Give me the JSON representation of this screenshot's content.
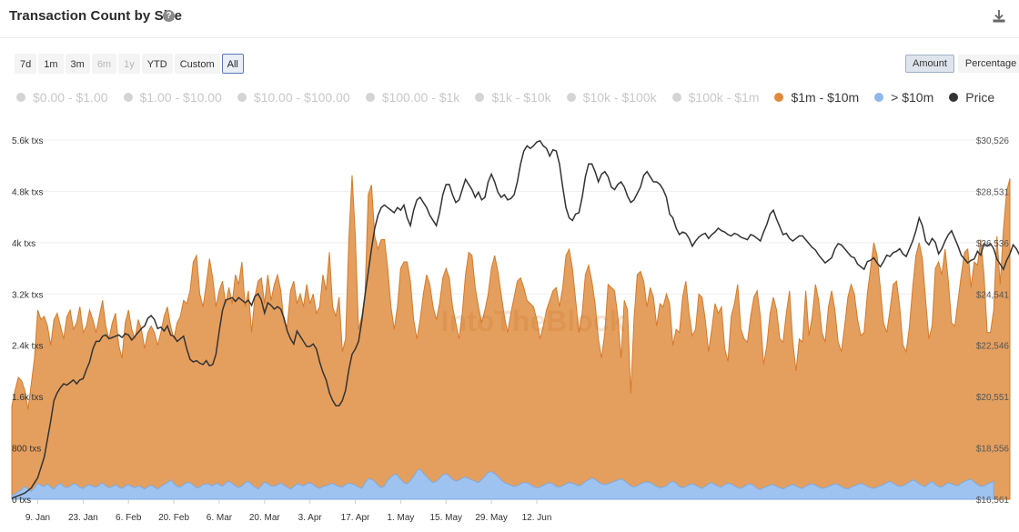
{
  "header": {
    "title": "Transaction Count by Size",
    "help_glyph": "?",
    "icons": {
      "help": "question-circle-icon",
      "download": "download-icon"
    }
  },
  "ranges": [
    {
      "label": "7d",
      "state": "normal"
    },
    {
      "label": "1m",
      "state": "normal"
    },
    {
      "label": "3m",
      "state": "normal"
    },
    {
      "label": "6m",
      "state": "disabled"
    },
    {
      "label": "1y",
      "state": "disabled"
    },
    {
      "label": "YTD",
      "state": "normal"
    },
    {
      "label": "Custom",
      "state": "normal"
    },
    {
      "label": "All",
      "state": "active"
    }
  ],
  "modes": [
    {
      "label": "Amount",
      "active": true
    },
    {
      "label": "Percentage",
      "active": false
    }
  ],
  "legend": [
    {
      "label": "$0.00 - $1.00",
      "enabled": false,
      "color": "#d4d4d4"
    },
    {
      "label": "$1.00 - $10.00",
      "enabled": false,
      "color": "#d4d4d4"
    },
    {
      "label": "$10.00 - $100.00",
      "enabled": false,
      "color": "#d4d4d4"
    },
    {
      "label": "$100.00 - $1k",
      "enabled": false,
      "color": "#d4d4d4"
    },
    {
      "label": "$1k - $10k",
      "enabled": false,
      "color": "#d4d4d4"
    },
    {
      "label": "$10k - $100k",
      "enabled": false,
      "color": "#d4d4d4"
    },
    {
      "label": "$100k - $1m",
      "enabled": false,
      "color": "#d4d4d4"
    },
    {
      "label": "$1m - $10m",
      "enabled": true,
      "color": "#e08a3c"
    },
    {
      "label": "> $10m",
      "enabled": true,
      "color": "#8fb8ea"
    },
    {
      "label": "Price",
      "enabled": true,
      "color": "#333333"
    }
  ],
  "watermark": "IntoTheBlock",
  "chart_data": {
    "type": "area",
    "title": "Transaction Count by Size",
    "x_tick_labels": [
      "9. Jan",
      "23. Jan",
      "6. Feb",
      "20. Feb",
      "6. Mar",
      "20. Mar",
      "3. Apr",
      "17. Apr",
      "1. May",
      "15. May",
      "29. May",
      "12. Jun"
    ],
    "y_left_ticks": [
      "0 txs",
      "800 txs",
      "1.6k txs",
      "2.4k txs",
      "3.2k txs",
      "4k txs",
      "4.8k txs",
      "5.6k txs"
    ],
    "y_left_range": [
      0,
      5600
    ],
    "y_right_ticks": [
      "$16,561",
      "$18,556",
      "$20,551",
      "$22,546",
      "$24,541",
      "$26,536",
      "$28,531",
      "$30,526"
    ],
    "y_right_range": [
      16561,
      30526
    ],
    "x_range_days_note": "daily points from 1 Jan to 19 Jun",
    "grid": "horizontal",
    "legend_position": "top",
    "series": [
      {
        "name": "$1m - $10m",
        "axis": "left",
        "color": "#e08a3c",
        "values": [
          1450,
          1700,
          1900,
          1850,
          1700,
          1400,
          1800,
          2200,
          2950,
          2800,
          2850,
          2700,
          2400,
          2800,
          2900,
          2700,
          2500,
          2850,
          2950,
          2650,
          2750,
          3000,
          2600,
          2700,
          2950,
          2800,
          2600,
          2850,
          3100,
          2700,
          2500,
          2750,
          2900,
          2400,
          2200,
          2750,
          2950,
          2650,
          2500,
          2800,
          2650,
          2350,
          2600,
          2700,
          2600,
          2400,
          2600,
          2850,
          3000,
          2700,
          2500,
          2750,
          2850,
          3100,
          3050,
          3250,
          3700,
          3800,
          3200,
          3000,
          3350,
          3750,
          3450,
          3000,
          3250,
          3400,
          3050,
          3300,
          3050,
          3500,
          3350,
          3700,
          3000,
          3250,
          2600,
          3150,
          3400,
          3450,
          3050,
          3500,
          3100,
          3350,
          3500,
          3250,
          2750,
          2700,
          3250,
          3400,
          3050,
          3200,
          3000,
          3350,
          3050,
          3200,
          2900,
          3000,
          3500,
          3250,
          3850,
          3000,
          2850,
          3150,
          2300,
          2500,
          4050,
          5050,
          4100,
          2650,
          2850,
          3200,
          4750,
          4900,
          4100,
          3900,
          4050,
          4050,
          3600,
          3000,
          2650,
          3000,
          3600,
          3700,
          3700,
          3400,
          2800,
          2500,
          2800,
          3200,
          3500,
          3350,
          3000,
          2800,
          3050,
          3450,
          3600,
          3450,
          3000,
          2750,
          2500,
          2900,
          3500,
          3850,
          3800,
          3300,
          3000,
          2750,
          2950,
          3200,
          3600,
          3800,
          3550,
          3200,
          2850,
          2600,
          2900,
          3150,
          3400,
          3450,
          3300,
          3100,
          3050,
          3000,
          2800,
          2500,
          2700,
          2950,
          3100,
          3250,
          3300,
          3000,
          3300,
          3800,
          3900,
          3600,
          3100,
          2600,
          2900,
          3500,
          3650,
          3400,
          3050,
          2500,
          2200,
          2600,
          3350,
          3300,
          3250,
          2850,
          2200,
          3100,
          2950,
          1650,
          2800,
          3500,
          3550,
          3400,
          3000,
          3300,
          3150,
          2700,
          3050,
          3000,
          3200,
          3050,
          2400,
          2650,
          2600,
          3150,
          3400,
          2900,
          2550,
          2650,
          3200,
          3150,
          2800,
          2300,
          2650,
          3050,
          2900,
          3000,
          2350,
          2150,
          2850,
          3050,
          3350,
          2650,
          2500,
          2450,
          2850,
          3150,
          3250,
          2850,
          2100,
          2400,
          2900,
          3150,
          2950,
          2500,
          2450,
          2900,
          3250,
          2450,
          2000,
          2500,
          2450,
          3250,
          2550,
          2850,
          3350,
          3100,
          2600,
          2450,
          3000,
          3250,
          2950,
          2450,
          2300,
          2700,
          3150,
          3350,
          3200,
          2800,
          2550,
          2600,
          3200,
          3600,
          4000,
          3800,
          3300,
          2750,
          2600,
          2950,
          3350,
          3400,
          3000,
          2400,
          2300,
          2700,
          3300,
          3800,
          4000,
          3750,
          3100,
          2500,
          2700,
          3600,
          3700,
          3500,
          3900,
          3400,
          2750,
          2700,
          3100,
          3500,
          3850,
          3900,
          3300,
          3700,
          3650,
          4050,
          3500,
          2600,
          2600,
          2950,
          4100,
          3350,
          4200,
          4800,
          5000
        ]
      },
      {
        "name": "> $10m",
        "axis": "left",
        "color": "#8fb8ea",
        "values": [
          60,
          80,
          120,
          150,
          200,
          160,
          120,
          180,
          250,
          220,
          200,
          240,
          190,
          160,
          220,
          250,
          200,
          180,
          210,
          240,
          230,
          190,
          170,
          210,
          230,
          200,
          190,
          220,
          260,
          210,
          180,
          200,
          230,
          190,
          170,
          210,
          230,
          200,
          180,
          210,
          190,
          160,
          200,
          220,
          190,
          160,
          200,
          230,
          260,
          300,
          250,
          200,
          190,
          230,
          260,
          260,
          220,
          180,
          190,
          230,
          240,
          230,
          210,
          250,
          230,
          200,
          260,
          280,
          250,
          210,
          180,
          210,
          260,
          280,
          230,
          190,
          160,
          210,
          270,
          240,
          210,
          200,
          230,
          250,
          220,
          190,
          160,
          200,
          240,
          230,
          210,
          240,
          260,
          230,
          190,
          170,
          200,
          210,
          230,
          250,
          220,
          200,
          190,
          230,
          250,
          240,
          220,
          190,
          170,
          260,
          320,
          310,
          280,
          220,
          180,
          210,
          300,
          340,
          390,
          380,
          310,
          260,
          240,
          290,
          360,
          440,
          470,
          410,
          350,
          300,
          260,
          280,
          330,
          380,
          400,
          360,
          310,
          280,
          300,
          330,
          350,
          320,
          300,
          280,
          260,
          310,
          360,
          420,
          430,
          400,
          360,
          300,
          260,
          240,
          220,
          200,
          210,
          240,
          260,
          260,
          230,
          200,
          180,
          190,
          220,
          240,
          260,
          240,
          200,
          190,
          210,
          240,
          260,
          250,
          230,
          210,
          230,
          280,
          300,
          330,
          310,
          270,
          240,
          230,
          240,
          260,
          280,
          300,
          320,
          290,
          250,
          210,
          190,
          210,
          240,
          260,
          270,
          260,
          230,
          200,
          180,
          190,
          210,
          260,
          280,
          250,
          200,
          180,
          200,
          230,
          240,
          220,
          190,
          170,
          200,
          240,
          260,
          230,
          200,
          190,
          230,
          250,
          240,
          210,
          180,
          170,
          200,
          230,
          240,
          210,
          170,
          150,
          180,
          200,
          220,
          230,
          200,
          180,
          160,
          190,
          210,
          230,
          210,
          180,
          170,
          200,
          230,
          240,
          220,
          190,
          170,
          180,
          200,
          220,
          240,
          230,
          200,
          170,
          160,
          190,
          210,
          230,
          250,
          230,
          200,
          180,
          170,
          190,
          210,
          230,
          260,
          280,
          250,
          220,
          200,
          210,
          240,
          270,
          300,
          280,
          240,
          210,
          200,
          250,
          280,
          230,
          200,
          190,
          230,
          260,
          240,
          220,
          210,
          250,
          280,
          300,
          310,
          270,
          230,
          200,
          210,
          240,
          260,
          280
        ]
      },
      {
        "name": "Price",
        "axis": "right",
        "color": "#333333",
        "values": [
          16600,
          16650,
          16700,
          16750,
          16800,
          16900,
          17000,
          17200,
          17400,
          17800,
          18200,
          18900,
          19600,
          20400,
          20700,
          20900,
          21050,
          21000,
          21100,
          21200,
          21050,
          21200,
          21250,
          21600,
          21900,
          22400,
          22700,
          22700,
          22900,
          22950,
          22800,
          22850,
          22900,
          22950,
          22850,
          23000,
          22950,
          22750,
          22900,
          23050,
          23200,
          23300,
          23600,
          23700,
          23550,
          23200,
          23250,
          23100,
          23300,
          22950,
          22900,
          22700,
          22800,
          22900,
          22400,
          22000,
          21900,
          21950,
          21850,
          21800,
          21950,
          21750,
          21800,
          22200,
          23100,
          23900,
          24300,
          24350,
          24400,
          24250,
          24400,
          24300,
          24200,
          24300,
          24100,
          24450,
          24550,
          24300,
          23800,
          24200,
          24100,
          23950,
          24050,
          23950,
          23600,
          23100,
          22800,
          22600,
          23100,
          22900,
          22700,
          22500,
          22500,
          22600,
          22400,
          21900,
          21500,
          21200,
          20700,
          20400,
          20200,
          20200,
          20400,
          20800,
          21600,
          22200,
          22400,
          22700,
          23500,
          24500,
          25400,
          26300,
          27100,
          27600,
          27900,
          28000,
          27900,
          27800,
          27700,
          27900,
          27800,
          28000,
          27500,
          27200,
          27800,
          28200,
          28300,
          28100,
          27900,
          27600,
          27400,
          27200,
          27700,
          28400,
          28800,
          28800,
          28400,
          28100,
          28200,
          28600,
          29000,
          28800,
          28600,
          28300,
          28500,
          28200,
          28300,
          28900,
          29200,
          28900,
          28500,
          28300,
          28400,
          28200,
          28250,
          28400,
          28900,
          29600,
          30100,
          30300,
          30200,
          30300,
          30450,
          30500,
          30300,
          30200,
          29900,
          30150,
          30100,
          29600,
          28700,
          27900,
          27500,
          27400,
          27650,
          27700,
          28300,
          29100,
          29600,
          29600,
          29300,
          28900,
          29200,
          29300,
          29100,
          28700,
          28600,
          28800,
          28900,
          28700,
          28350,
          28100,
          28200,
          28450,
          28700,
          29150,
          29300,
          29100,
          28900,
          28900,
          28800,
          28600,
          28300,
          27650,
          27500,
          27100,
          26850,
          26950,
          26900,
          26700,
          26400,
          26600,
          26750,
          26850,
          26900,
          26700,
          26850,
          26950,
          27100,
          27000,
          26950,
          26850,
          26800,
          26900,
          26850,
          26750,
          26700,
          26650,
          26850,
          26800,
          26700,
          26600,
          26950,
          27250,
          27650,
          27800,
          27450,
          27150,
          26850,
          26900,
          26700,
          26600,
          26700,
          26800,
          26800,
          26650,
          26500,
          26350,
          26250,
          26050,
          25900,
          25750,
          25850,
          25950,
          26300,
          26500,
          26450,
          26300,
          26150,
          26000,
          25950,
          25700,
          25600,
          25500,
          25800,
          25850,
          25950,
          25750,
          25600,
          25800,
          26050,
          26000,
          26150,
          26200,
          26300,
          26100,
          26000,
          26300,
          26600,
          27000,
          27500,
          27200,
          26600,
          26450,
          26700,
          26550,
          26100,
          26300,
          26600,
          26850,
          27000,
          26700,
          26400,
          26050,
          25900,
          25750,
          25850,
          25900,
          26200,
          26050,
          26500,
          26400,
          26500,
          26300,
          25900,
          25700,
          25500,
          25850,
          26100,
          26450,
          26300,
          26050,
          26100,
          26000,
          25950,
          25800,
          25500,
          25400,
          25600,
          26000,
          26400,
          26850,
          27200,
          28200,
          28900,
          29500
        ]
      }
    ]
  }
}
